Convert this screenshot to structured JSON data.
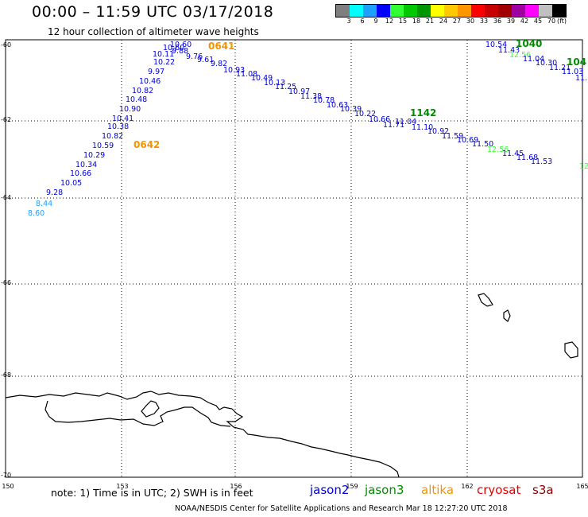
{
  "title": "00:00 – 11:59 UTC 03/17/2018",
  "subtitle": "12 hour collection of altimeter wave heights",
  "colorbar": {
    "colors": [
      "#7f7f7f",
      "#00ffff",
      "#1ea0ff",
      "#0000ff",
      "#32ff32",
      "#00c800",
      "#009600",
      "#ffff00",
      "#ffc800",
      "#ff9600",
      "#ff0000",
      "#c80000",
      "#a00000",
      "#a000a0",
      "#ff00ff",
      "#c0c0c0",
      "#000000"
    ],
    "labels": [
      "3",
      "6",
      "9",
      "12",
      "15",
      "18",
      "21",
      "24",
      "27",
      "30",
      "33",
      "36",
      "39",
      "42",
      "45",
      "70",
      "(ft)"
    ]
  },
  "axes": {
    "x_ticks": [
      "150",
      "153",
      "156",
      "159",
      "162",
      "165"
    ],
    "y_ticks": [
      "-60",
      "-62",
      "-64",
      "-66",
      "-68",
      "-70"
    ]
  },
  "times": [
    {
      "label": "0641",
      "color": "#f29400"
    },
    {
      "label": "0642",
      "color": "#f29400"
    },
    {
      "label": "1040",
      "color": "#008c00"
    },
    {
      "label": "104",
      "color": "#008c00"
    },
    {
      "label": "1142",
      "color": "#008c00"
    }
  ],
  "track_values": {
    "A": [
      "8.60",
      "8.44",
      "9.28",
      "10.05",
      "10.66",
      "10.34",
      "10.29",
      "10.59",
      "10.82",
      "10.38",
      "10.41",
      "10.90",
      "10.48",
      "10.82",
      "10.46",
      "9.97",
      "10.22",
      "10.11",
      "10.60",
      "10.60",
      "9.88",
      "9.76",
      "9.61",
      "9.82",
      "10.93",
      "11.08",
      "10.49",
      "10.13",
      "11.25",
      "10.97",
      "11.38",
      "10.78",
      "10.63",
      "10.39",
      "10.22",
      "10.66",
      "11.71",
      "11.04",
      "11.10",
      "10.92",
      "11.59",
      "10.69",
      "11.50",
      "12.56",
      "11.45",
      "11.68",
      "11.53",
      "12"
    ],
    "B": [
      "10.54",
      "11.43",
      "12.56",
      "11.04",
      "10.30",
      "11.21",
      "11.03",
      "11."
    ]
  },
  "note": "note: 1) Time is in UTC; 2) SWH is in feet",
  "satellites": [
    {
      "name": "jason2",
      "color": "#0000d8"
    },
    {
      "name": "jason3",
      "color": "#008c00"
    },
    {
      "name": "altika",
      "color": "#f29400"
    },
    {
      "name": "cryosat",
      "color": "#e00000"
    },
    {
      "name": "s3a",
      "color": "#8c0000"
    }
  ],
  "credit": "NOAA/NESDIS Center for Satellite Applications and Research   Mar 18 12:27:20 UTC 2018"
}
